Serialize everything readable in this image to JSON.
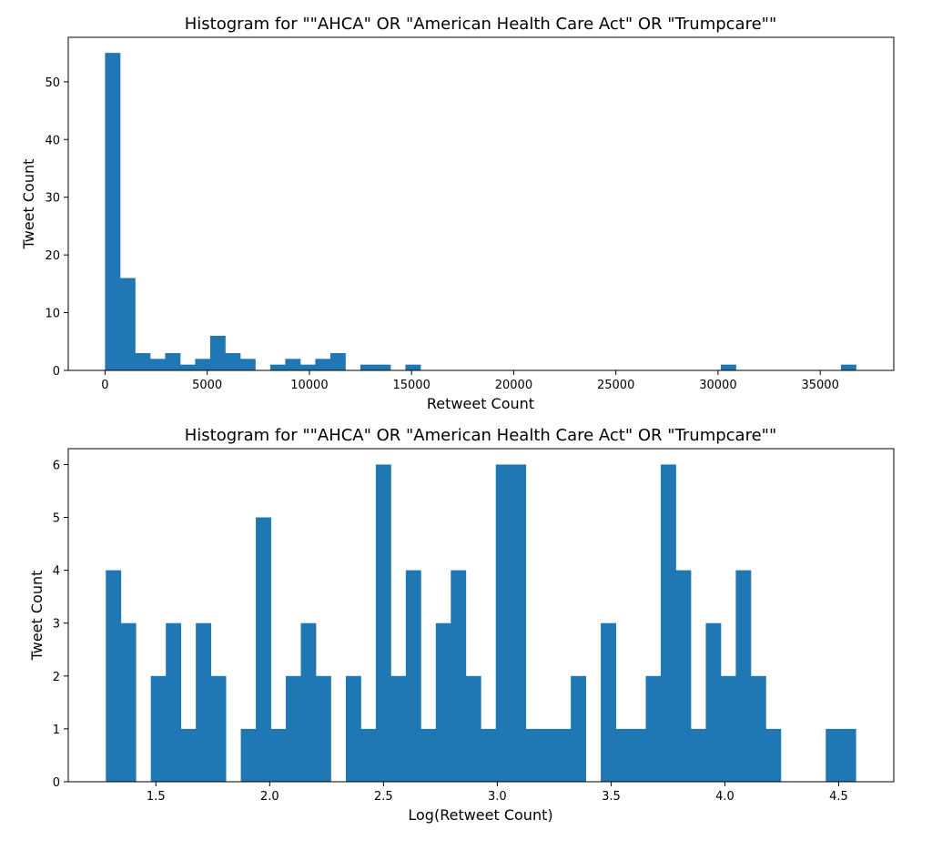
{
  "chart_data": [
    {
      "type": "bar",
      "title": "Histogram for \"\"AHCA\" OR \"American Health Care Act\" OR \"Trumpcare\"\"",
      "xlabel": "Retweet Count",
      "ylabel": "Tweet Count",
      "bar_color": "#1f77b4",
      "grid": false,
      "xlim": [
        -1800,
        38600
      ],
      "ylim": [
        0,
        57.7
      ],
      "xticks": [
        0,
        5000,
        10000,
        15000,
        20000,
        25000,
        30000,
        35000
      ],
      "yticks": [
        0,
        10,
        20,
        30,
        40,
        50
      ],
      "bin_start": 0,
      "bin_width": 735,
      "values": [
        55,
        16,
        3,
        2,
        3,
        1,
        2,
        6,
        3,
        2,
        0,
        1,
        2,
        1,
        2,
        3,
        0,
        1,
        1,
        0,
        1,
        0,
        0,
        0,
        0,
        0,
        0,
        0,
        0,
        0,
        0,
        0,
        0,
        0,
        0,
        0,
        0,
        0,
        0,
        0,
        0,
        1,
        0,
        0,
        0,
        0,
        0,
        0,
        0,
        1
      ]
    },
    {
      "type": "bar",
      "title": "Histogram for \"\"AHCA\" OR \"American Health Care Act\" OR \"Trumpcare\"\"",
      "xlabel": "Log(Retweet Count)",
      "ylabel": "Tweet Count",
      "bar_color": "#1f77b4",
      "grid": false,
      "xlim": [
        1.115,
        4.742
      ],
      "ylim": [
        0,
        6.3
      ],
      "xticks": [
        1.5,
        2.0,
        2.5,
        3.0,
        3.5,
        4.0,
        4.5
      ],
      "yticks": [
        0,
        1,
        2,
        3,
        4,
        5,
        6
      ],
      "bin_start": 1.28,
      "bin_width": 0.0659,
      "values": [
        4,
        3,
        0,
        2,
        3,
        1,
        3,
        2,
        0,
        1,
        5,
        1,
        2,
        3,
        2,
        0,
        2,
        1,
        6,
        2,
        4,
        1,
        3,
        4,
        2,
        1,
        6,
        6,
        1,
        1,
        1,
        2,
        0,
        3,
        1,
        1,
        2,
        6,
        4,
        1,
        3,
        2,
        4,
        2,
        1,
        0,
        0,
        0,
        1,
        1
      ]
    }
  ]
}
